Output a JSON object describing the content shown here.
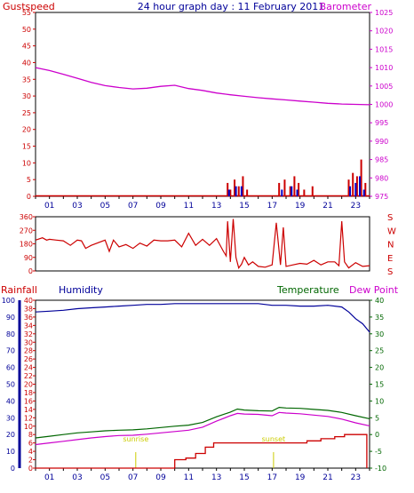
{
  "header": {
    "left_label": "Gustspeed",
    "title": "24 hour graph day : 11 February 2011",
    "right_label": "Barometer"
  },
  "colors": {
    "frame": "#000000",
    "barometer": "#cc00cc",
    "gust": "#cc0000",
    "humidity": "#000099",
    "temperature": "#006600",
    "dewpoint": "#cc00cc",
    "rain": "#cc0000",
    "avg_wind": "#0000cc",
    "sun": "#cccc00"
  },
  "chart_data": [
    {
      "type": "line",
      "id": "wind-barometer",
      "left_axis": {
        "label": "Gustspeed",
        "ylim": [
          0,
          55
        ],
        "ticks": [
          0,
          5,
          10,
          15,
          20,
          25,
          30,
          35,
          40,
          45,
          50,
          55
        ]
      },
      "right_axis": {
        "label": "Barometer",
        "ylim": [
          975,
          1025
        ],
        "ticks": [
          975,
          980,
          985,
          990,
          995,
          1000,
          1005,
          1010,
          1015,
          1020,
          1025
        ]
      },
      "x_ticks": [
        "01",
        "03",
        "05",
        "07",
        "09",
        "11",
        "13",
        "15",
        "17",
        "19",
        "21",
        "23"
      ],
      "series": [
        {
          "name": "Barometer",
          "axis": "right",
          "color": "#cc00cc",
          "x": [
            0,
            1,
            2,
            3,
            4,
            5,
            6,
            7,
            8,
            9,
            10,
            11,
            12,
            13,
            14,
            15,
            16,
            17,
            18,
            19,
            20,
            21,
            22,
            23,
            24
          ],
          "y": [
            1010,
            1009.2,
            1008.2,
            1007.1,
            1006,
            1005.1,
            1004.6,
            1004.2,
            1004.4,
            1004.9,
            1005.2,
            1004.3,
            1003.8,
            1003.1,
            1002.6,
            1002.2,
            1001.8,
            1001.5,
            1001.2,
            1000.9,
            1000.6,
            1000.3,
            1000.1,
            1000.0,
            999.9
          ]
        },
        {
          "name": "Gustspeed",
          "axis": "left",
          "color": "#cc0000",
          "style": "bars",
          "x": [
            13.8,
            14.0,
            14.3,
            14.6,
            14.9,
            15.2,
            17.5,
            17.9,
            18.3,
            18.6,
            18.9,
            19.3,
            19.9,
            22.5,
            22.8,
            23.1,
            23.4,
            23.7
          ],
          "y": [
            4,
            2,
            5,
            3,
            6,
            2,
            4,
            5,
            3,
            6,
            4,
            2,
            3,
            5,
            7,
            6,
            11,
            4
          ]
        },
        {
          "name": "Average wind",
          "axis": "left",
          "color": "#0000cc",
          "style": "bars",
          "x": [
            13.9,
            14.4,
            14.8,
            17.7,
            18.4,
            18.8,
            22.6,
            23.0,
            23.3,
            23.6
          ],
          "y": [
            2,
            3,
            3,
            2,
            3,
            2,
            3,
            4,
            6,
            2
          ]
        }
      ],
      "grid": false
    },
    {
      "type": "line",
      "id": "wind-direction",
      "left_axis": {
        "ylim": [
          0,
          360
        ],
        "ticks": [
          0,
          90,
          180,
          270,
          360
        ]
      },
      "right_axis": {
        "ticks": [
          "S",
          "E",
          "N",
          "W",
          "S"
        ]
      },
      "series": [
        {
          "name": "Wind direction",
          "color": "#cc0000",
          "x": [
            0,
            0.5,
            0.8,
            1.0,
            1.5,
            2.0,
            2.5,
            3.0,
            3.3,
            3.6,
            4.0,
            5.0,
            5.3,
            5.6,
            6.0,
            6.5,
            7.0,
            7.5,
            8.0,
            8.5,
            9.0,
            9.5,
            10.0,
            10.5,
            11.0,
            11.5,
            12.0,
            12.5,
            13.0,
            13.5,
            13.7,
            13.8,
            14.0,
            14.2,
            14.4,
            14.6,
            14.8,
            15.0,
            15.3,
            15.6,
            16.0,
            16.5,
            17.0,
            17.3,
            17.6,
            17.8,
            18.0,
            18.5,
            19.0,
            19.5,
            20.0,
            20.5,
            21.0,
            21.5,
            21.8,
            22.0,
            22.2,
            22.5,
            23.0,
            23.5,
            24.0
          ],
          "y": [
            205,
            220,
            205,
            210,
            205,
            200,
            170,
            205,
            200,
            150,
            170,
            205,
            130,
            205,
            160,
            175,
            150,
            185,
            165,
            205,
            200,
            200,
            205,
            160,
            250,
            170,
            210,
            170,
            215,
            130,
            100,
            330,
            60,
            345,
            90,
            20,
            45,
            90,
            40,
            60,
            30,
            25,
            40,
            320,
            40,
            290,
            30,
            40,
            50,
            45,
            70,
            40,
            60,
            60,
            35,
            330,
            60,
            20,
            55,
            30,
            35
          ]
        }
      ],
      "grid": false
    },
    {
      "type": "line",
      "id": "rain-humidity-temperature",
      "left_axis_rain": {
        "label": "Rainfall",
        "ylim": [
          0,
          40
        ],
        "ticks": [
          0,
          2,
          4,
          6,
          8,
          10,
          12,
          14,
          16,
          18,
          20,
          22,
          24,
          26,
          28,
          30,
          32,
          34,
          36,
          38,
          40
        ]
      },
      "left_axis_humidity": {
        "label": "Humidity",
        "ylim": [
          0,
          100
        ],
        "ticks": [
          0,
          10,
          20,
          30,
          40,
          50,
          60,
          70,
          80,
          90,
          100
        ]
      },
      "right_axis": {
        "label": "Temperature / Dew Point",
        "ylim": [
          -10,
          40
        ],
        "ticks": [
          -10,
          -5,
          0,
          5,
          10,
          15,
          20,
          25,
          30,
          35,
          40
        ]
      },
      "x_ticks": [
        "01",
        "03",
        "05",
        "07",
        "09",
        "11",
        "13",
        "15",
        "17",
        "19",
        "21",
        "23"
      ],
      "annotations": [
        {
          "text": "sunrise",
          "x": 7.2
        },
        {
          "text": "sunset",
          "x": 17.1
        }
      ],
      "series": [
        {
          "name": "Humidity",
          "axis": "humidity",
          "color": "#000099",
          "x": [
            0,
            1,
            2,
            3,
            4,
            5,
            6,
            7,
            8,
            9,
            10,
            11,
            12,
            13,
            14,
            15,
            16,
            17,
            18,
            19,
            20,
            21,
            22,
            22.5,
            23,
            23.5,
            24
          ],
          "y": [
            93,
            93.5,
            94,
            95,
            95.5,
            96,
            96.5,
            97,
            97.5,
            97.5,
            98,
            98,
            98,
            98,
            98,
            98,
            98,
            97,
            97,
            96.5,
            96.5,
            97,
            96,
            93,
            89,
            86,
            81
          ]
        },
        {
          "name": "Temperature",
          "axis": "right",
          "color": "#006600",
          "x": [
            0,
            1,
            2,
            3,
            4,
            5,
            6,
            7,
            8,
            9,
            10,
            11,
            12,
            13,
            14,
            14.5,
            15,
            16,
            17,
            17.5,
            18,
            19,
            20,
            21,
            22,
            23,
            24
          ],
          "y": [
            -1,
            -0.5,
            0,
            0.5,
            0.8,
            1.1,
            1.3,
            1.4,
            1.7,
            2.1,
            2.5,
            2.8,
            3.6,
            5.3,
            6.7,
            7.6,
            7.3,
            7.1,
            7.0,
            8.1,
            7.9,
            7.8,
            7.5,
            7.2,
            6.6,
            5.6,
            4.7
          ]
        },
        {
          "name": "Dew Point",
          "axis": "right",
          "color": "#cc00cc",
          "x": [
            0,
            1,
            2,
            3,
            4,
            5,
            6,
            7,
            8,
            9,
            10,
            11,
            12,
            13,
            14,
            14.5,
            15,
            16,
            17,
            17.5,
            18,
            19,
            20,
            21,
            22,
            23,
            24
          ],
          "y": [
            -3,
            -2.5,
            -2,
            -1.5,
            -1,
            -0.6,
            -0.3,
            -0.2,
            0.1,
            0.5,
            0.9,
            1.3,
            2.2,
            4.0,
            5.6,
            6.3,
            6.1,
            6.0,
            5.6,
            6.6,
            6.4,
            6.2,
            5.8,
            5.4,
            4.6,
            3.5,
            2.6
          ]
        },
        {
          "name": "Rainfall",
          "axis": "rain",
          "color": "#cc0000",
          "style": "step",
          "x": [
            0,
            8.5,
            10.0,
            10.8,
            11.5,
            12.2,
            12.8,
            19.5,
            20.5,
            21.5,
            22.2,
            22.6,
            23.8
          ],
          "y": [
            0,
            0,
            2,
            2.4,
            3.5,
            5,
            6,
            6.5,
            7,
            7.5,
            8,
            8,
            0
          ]
        }
      ],
      "grid": false
    }
  ]
}
